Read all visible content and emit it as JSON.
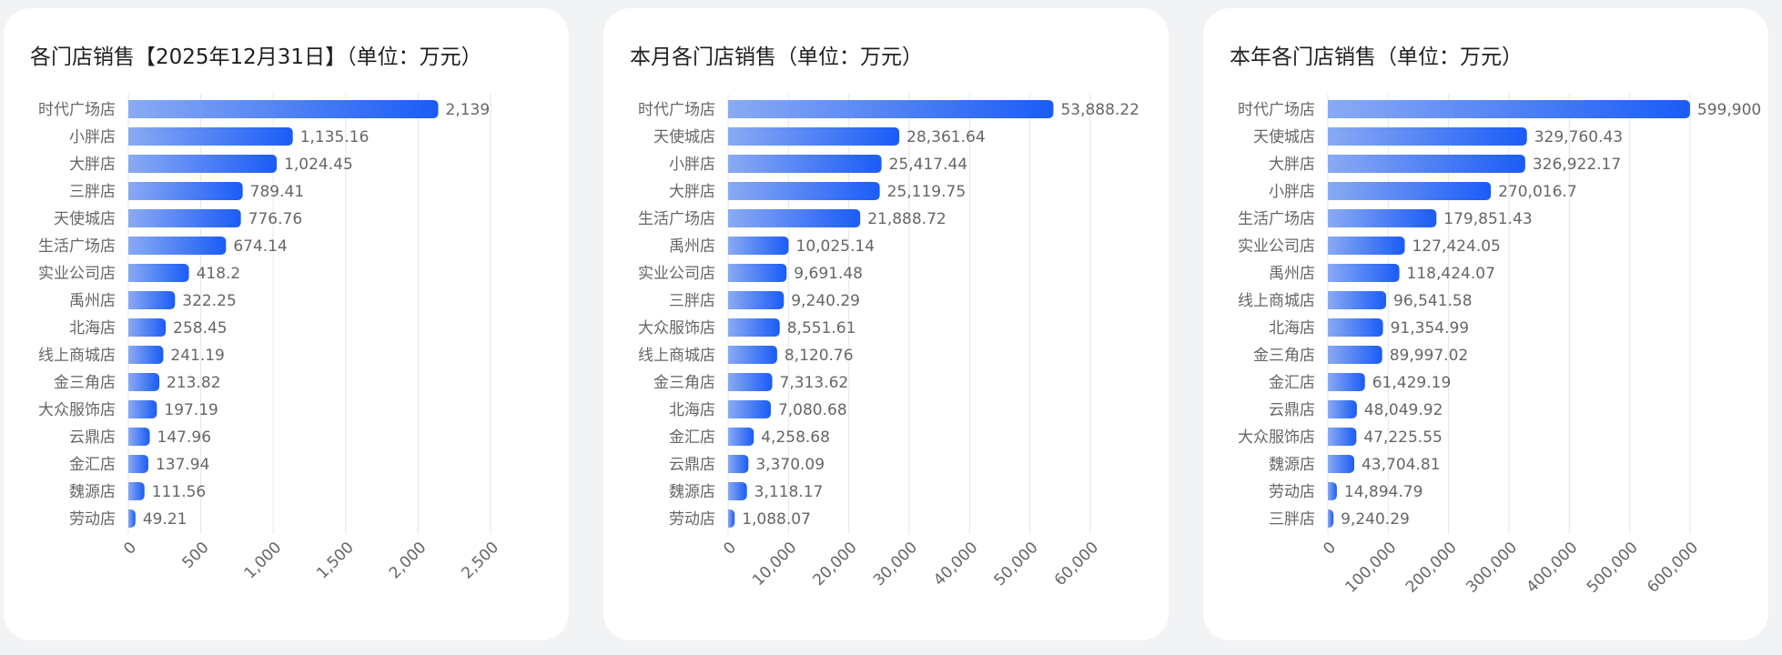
{
  "chart_data": [
    {
      "type": "bar",
      "orientation": "horizontal",
      "title": "各门店销售【2025年12月31日】（单位：万元）",
      "categories": [
        "时代广场店",
        "小胖店",
        "大胖店",
        "三胖店",
        "天使城店",
        "生活广场店",
        "实业公司店",
        "禹州店",
        "北海店",
        "线上商城店",
        "金三角店",
        "大众服饰店",
        "云鼎店",
        "金汇店",
        "魏源店",
        "劳动店"
      ],
      "values": [
        2139,
        1135.16,
        1024.45,
        789.41,
        776.76,
        674.14,
        418.2,
        322.25,
        258.45,
        241.19,
        213.82,
        197.19,
        147.96,
        137.94,
        111.56,
        49.21
      ],
      "value_labels": [
        "2,139",
        "1,135.16",
        "1,024.45",
        "789.41",
        "776.76",
        "674.14",
        "418.2",
        "322.25",
        "258.45",
        "241.19",
        "213.82",
        "197.19",
        "147.96",
        "137.94",
        "111.56",
        "49.21"
      ],
      "gradient": [
        "#8aaaf3",
        "#1a5cf6"
      ],
      "xlim": [
        0,
        2500
      ],
      "xticks": [
        0,
        500,
        {
          "value": 1000,
          "label": "1,000"
        },
        {
          "value": 1500,
          "label": "1,500"
        },
        {
          "value": 2000,
          "label": "2,000"
        },
        {
          "value": 2500,
          "label": "2,500"
        }
      ],
      "grid": true
    },
    {
      "type": "bar",
      "orientation": "horizontal",
      "title": "本月各门店销售（单位：万元）",
      "categories": [
        "时代广场店",
        "天使城店",
        "小胖店",
        "大胖店",
        "生活广场店",
        "禹州店",
        "实业公司店",
        "三胖店",
        "大众服饰店",
        "线上商城店",
        "金三角店",
        "北海店",
        "金汇店",
        "云鼎店",
        "魏源店",
        "劳动店"
      ],
      "values": [
        53888.22,
        28361.64,
        25417.44,
        25119.75,
        21888.72,
        10025.14,
        9691.48,
        9240.29,
        8551.61,
        8120.76,
        7313.62,
        7080.68,
        4258.68,
        3370.09,
        3118.17,
        1088.07
      ],
      "value_labels": [
        "53,888.22",
        "28,361.64",
        "25,417.44",
        "25,119.75",
        "21,888.72",
        "10,025.14",
        "9,691.48",
        "9,240.29",
        "8,551.61",
        "8,120.76",
        "7,313.62",
        "7,080.68",
        "4,258.68",
        "3,370.09",
        "3,118.17",
        "1,088.07"
      ],
      "gradient": [
        "#8aaaf3",
        "#1a5cf6"
      ],
      "xlim": [
        0,
        60000
      ],
      "xticks": [
        0,
        {
          "value": 10000,
          "label": "10,000"
        },
        {
          "value": 20000,
          "label": "20,000"
        },
        {
          "value": 30000,
          "label": "30,000"
        },
        {
          "value": 40000,
          "label": "40,000"
        },
        {
          "value": 50000,
          "label": "50,000"
        },
        {
          "value": 60000,
          "label": "60,000"
        }
      ],
      "grid": true
    },
    {
      "type": "bar",
      "orientation": "horizontal",
      "title": "本年各门店销售（单位：万元）",
      "categories": [
        "时代广场店",
        "天使城店",
        "大胖店",
        "小胖店",
        "生活广场店",
        "实业公司店",
        "禹州店",
        "线上商城店",
        "北海店",
        "金三角店",
        "金汇店",
        "云鼎店",
        "大众服饰店",
        "魏源店",
        "劳动店",
        "三胖店"
      ],
      "values": [
        599900,
        329760.43,
        326922.17,
        270016.7,
        179851.43,
        127424.05,
        118424.07,
        96541.58,
        91354.99,
        89997.02,
        61429.19,
        48049.92,
        47225.55,
        43704.81,
        14894.79,
        9240.29
      ],
      "value_labels": [
        "599,900",
        "329,760.43",
        "326,922.17",
        "270,016.7",
        "179,851.43",
        "127,424.05",
        "118,424.07",
        "96,541.58",
        "91,354.99",
        "89,997.02",
        "61,429.19",
        "48,049.92",
        "47,225.55",
        "43,704.81",
        "14,894.79",
        "9,240.29"
      ],
      "gradient": [
        "#8aaaf3",
        "#1a5cf6"
      ],
      "xlim": [
        0,
        600000
      ],
      "xticks": [
        0,
        {
          "value": 100000,
          "label": "100,000"
        },
        {
          "value": 200000,
          "label": "200,000"
        },
        {
          "value": 300000,
          "label": "300,000"
        },
        {
          "value": 400000,
          "label": "400,000"
        },
        {
          "value": 500000,
          "label": "500,000"
        },
        {
          "value": 600000,
          "label": "600,000"
        }
      ],
      "grid": true
    }
  ]
}
